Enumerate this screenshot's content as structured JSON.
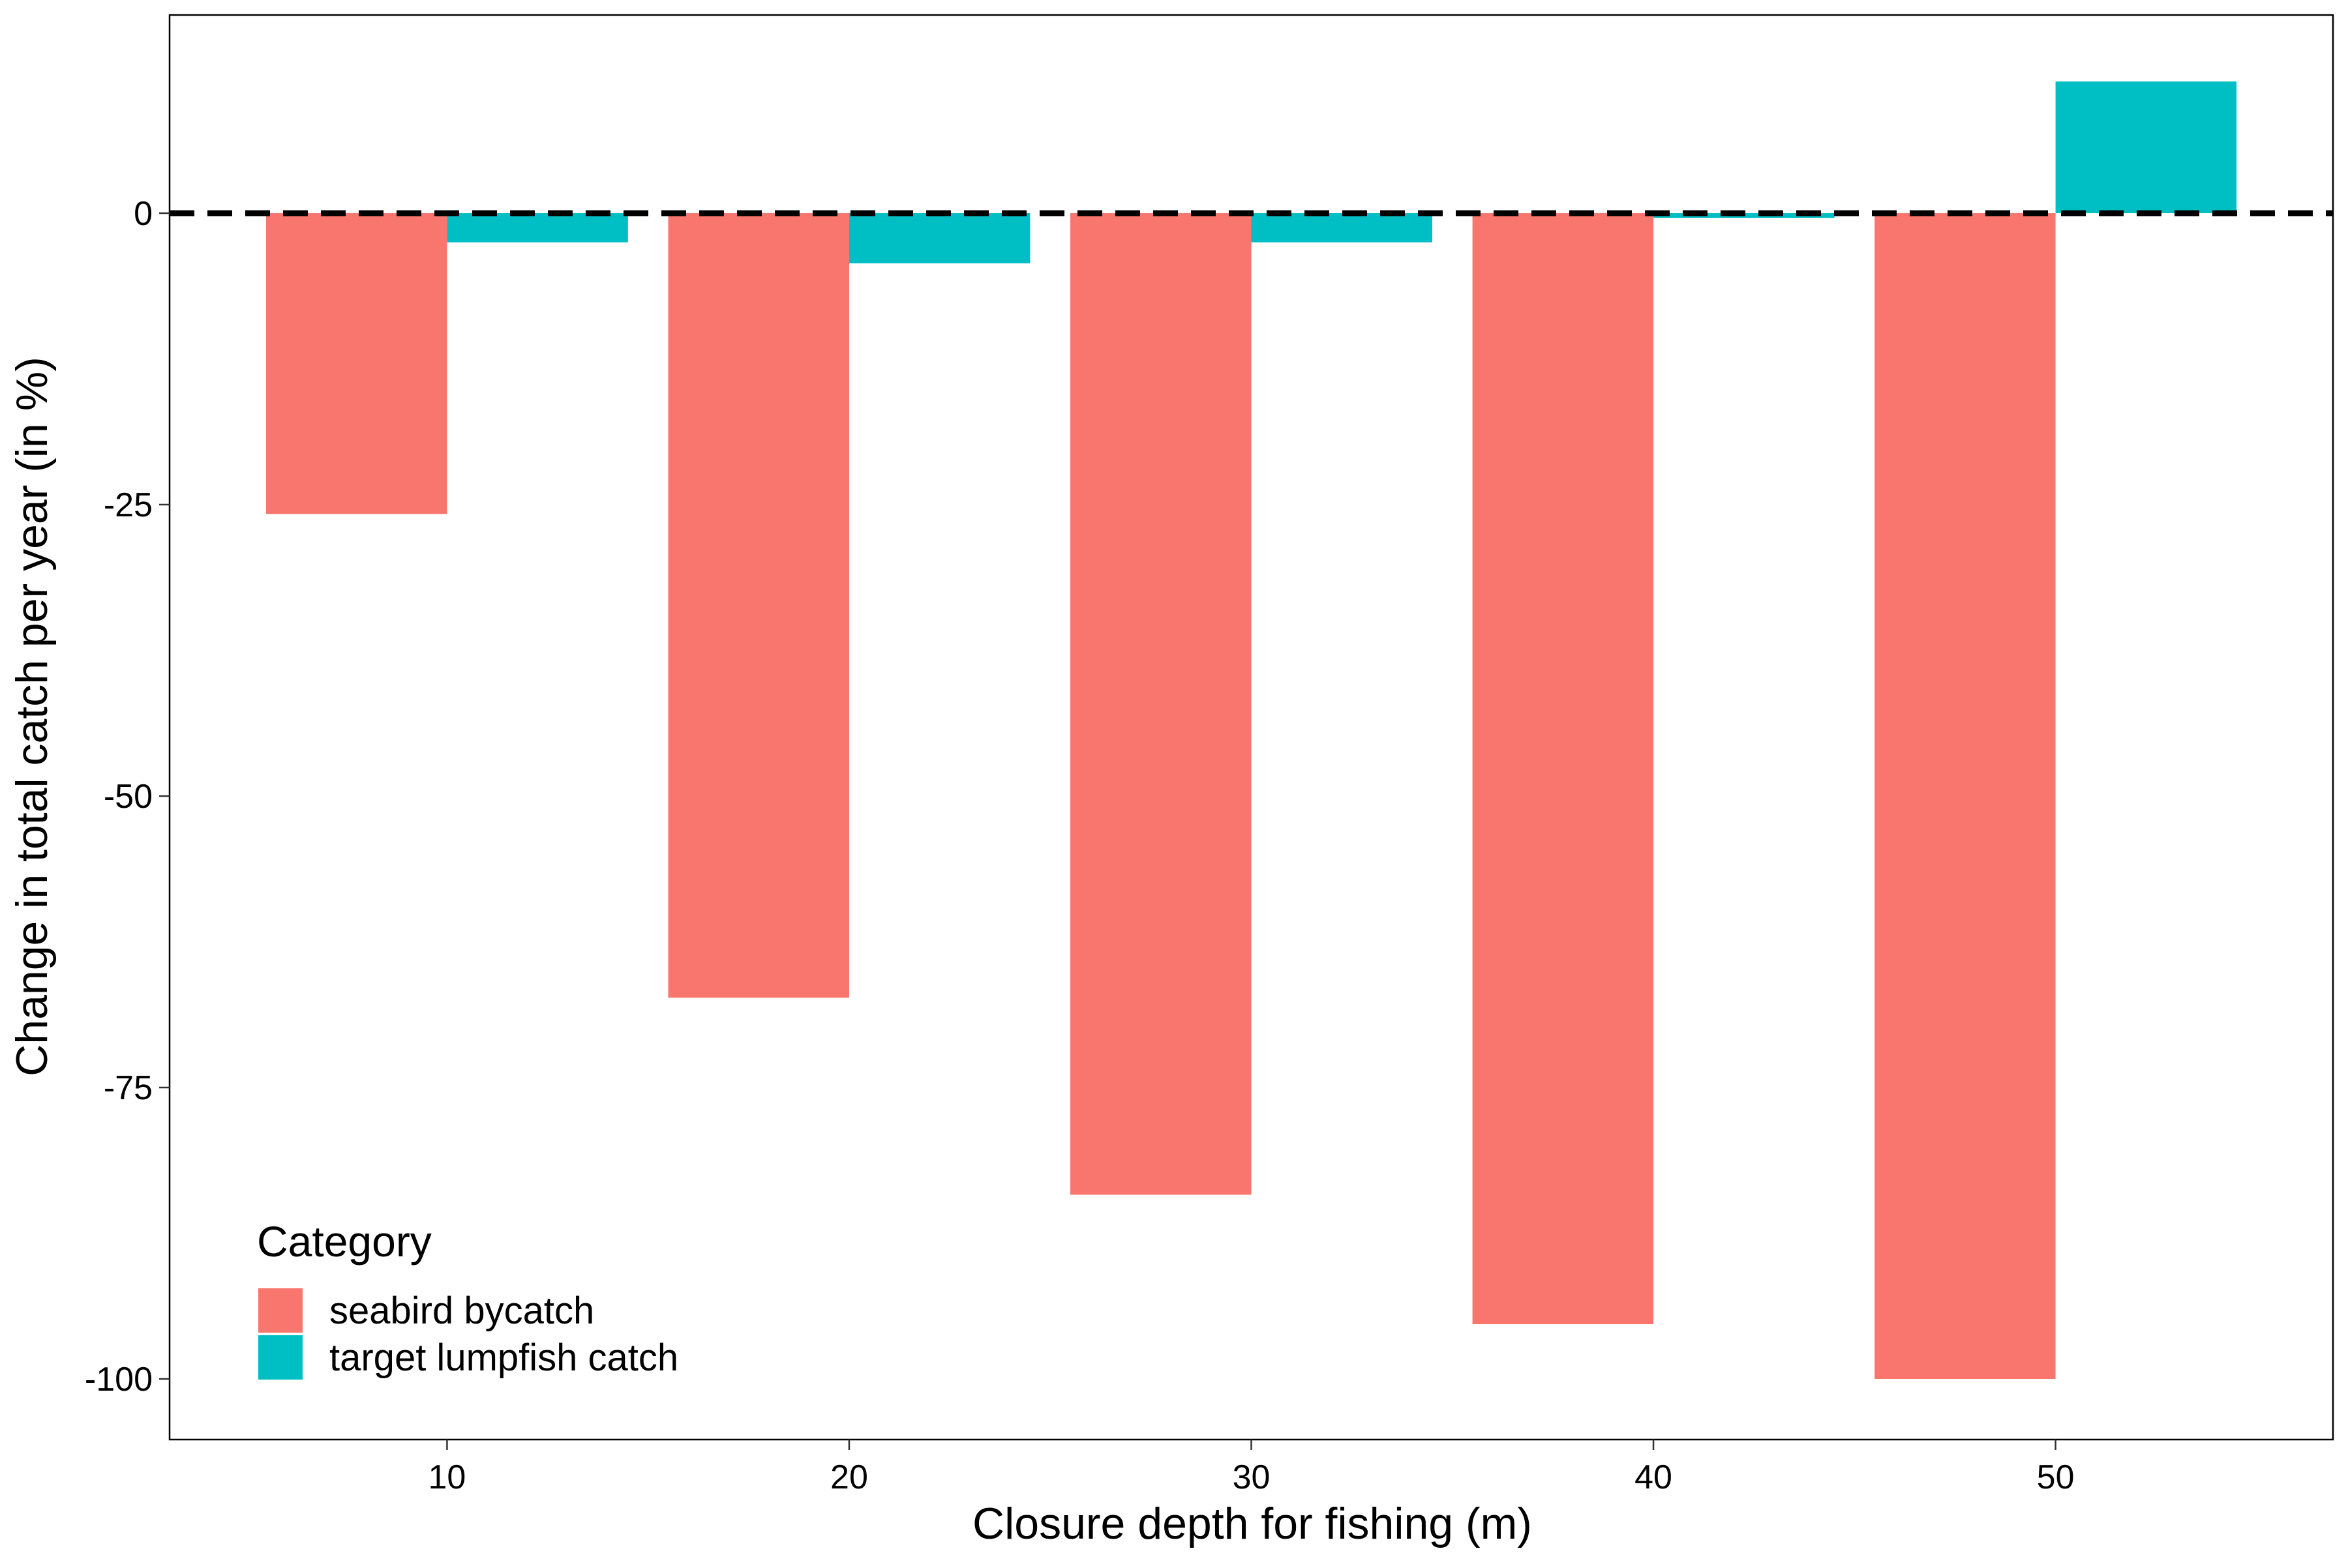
{
  "chart_data": {
    "type": "bar",
    "xlabel": "Closure depth for fishing (m)",
    "ylabel": "Change in total catch per year (in %)",
    "categories": [
      "10",
      "20",
      "30",
      "40",
      "50"
    ],
    "x_values": [
      10,
      20,
      30,
      40,
      50
    ],
    "xlim": [
      3.1,
      56.9
    ],
    "ylim": [
      -105.2,
      17
    ],
    "y_ticks": [
      0,
      -25,
      -50,
      -75,
      -100
    ],
    "y_tick_labels": [
      "0",
      "-25",
      "-50",
      "-75",
      "-100"
    ],
    "reference_line": {
      "y": 0,
      "style": "dashed"
    },
    "grid": false,
    "legend": {
      "title": "Category",
      "position": "bottom-left"
    },
    "series": [
      {
        "name": "seabird bycatch",
        "color": "#F8766D",
        "values": [
          -25.8,
          -67.3,
          -84.2,
          -95.3,
          -100
        ]
      },
      {
        "name": "target lumpfish catch",
        "color": "#00BFC4",
        "values": [
          -2.5,
          -4.3,
          -2.5,
          -0.4,
          11.3
        ]
      }
    ]
  }
}
